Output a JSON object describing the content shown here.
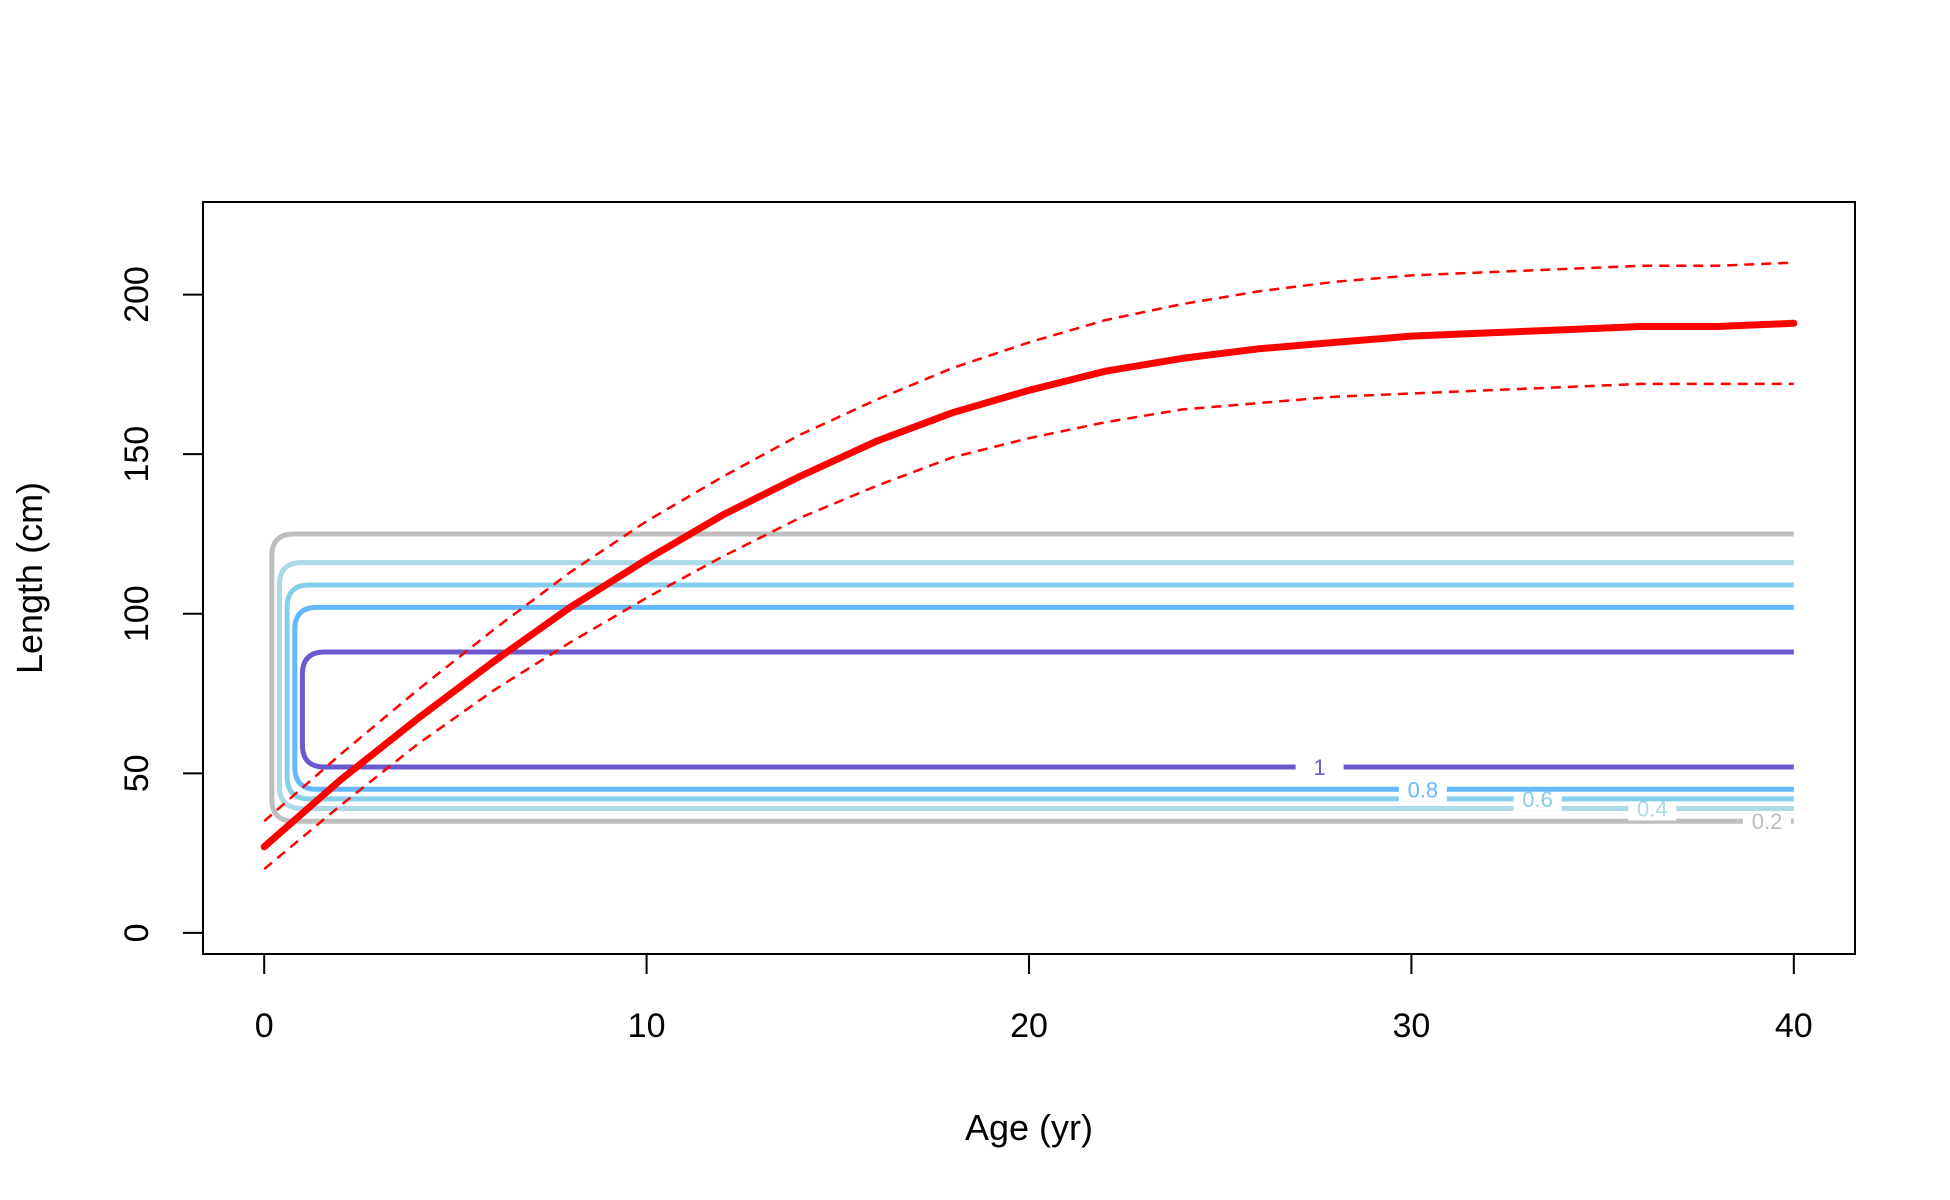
{
  "chart_data": {
    "type": "line",
    "title": "",
    "xlabel": "Age (yr)",
    "ylabel": "Length (cm)",
    "xlim": [
      -1.6,
      41.6
    ],
    "ylim": [
      -6.6,
      229
    ],
    "x_ticks": [
      0,
      10,
      20,
      30,
      40
    ],
    "y_ticks": [
      0,
      50,
      100,
      150,
      200
    ],
    "grid": false,
    "legend": "none",
    "mean_curve": {
      "color": "#ff0000",
      "style": "solid",
      "x": [
        0,
        2,
        4,
        6,
        8,
        10,
        12,
        14,
        16,
        18,
        20,
        22,
        24,
        26,
        28,
        30,
        32,
        34,
        36,
        38,
        40
      ],
      "y": [
        27,
        48,
        67,
        85,
        102,
        117,
        131,
        143,
        154,
        163,
        170,
        176,
        180,
        183,
        185,
        187,
        188,
        189,
        190,
        190,
        191
      ]
    },
    "upper_interval": {
      "color": "#ff0000",
      "style": "dashed",
      "x": [
        0,
        2,
        4,
        6,
        8,
        10,
        12,
        14,
        16,
        18,
        20,
        22,
        24,
        26,
        28,
        30,
        32,
        34,
        36,
        38,
        40
      ],
      "y": [
        35,
        56,
        76,
        95,
        113,
        129,
        143,
        156,
        167,
        177,
        185,
        192,
        197,
        201,
        204,
        206,
        207,
        208,
        209,
        209,
        210
      ]
    },
    "lower_interval": {
      "color": "#ff0000",
      "style": "dashed",
      "x": [
        0,
        2,
        4,
        6,
        8,
        10,
        12,
        14,
        16,
        18,
        20,
        22,
        24,
        26,
        28,
        30,
        32,
        34,
        36,
        38,
        40
      ],
      "y": [
        20,
        40,
        59,
        76,
        91,
        105,
        118,
        130,
        140,
        149,
        155,
        160,
        164,
        166,
        168,
        169,
        170,
        171,
        172,
        172,
        172
      ]
    },
    "contours": [
      {
        "level": "0.2",
        "color": "#bebebe",
        "x_left": 0.2,
        "x_right": 40,
        "y_bottom": 35,
        "y_top": 125
      },
      {
        "level": "0.4",
        "color": "#add8e6",
        "x_left": 0.4,
        "x_right": 40,
        "y_bottom": 39,
        "y_top": 116
      },
      {
        "level": "0.6",
        "color": "#87ceeb",
        "x_left": 0.6,
        "x_right": 40,
        "y_bottom": 42,
        "y_top": 109
      },
      {
        "level": "0.8",
        "color": "#63b8ff",
        "x_left": 0.8,
        "x_right": 40,
        "y_bottom": 45,
        "y_top": 102
      },
      {
        "level": "1",
        "color": "#6a5acd",
        "x_left": 1.0,
        "x_right": 40,
        "y_bottom": 52,
        "y_top": 88
      }
    ],
    "contour_label_positions": [
      39.3,
      36.3,
      33.3,
      30.3,
      27.6
    ]
  }
}
